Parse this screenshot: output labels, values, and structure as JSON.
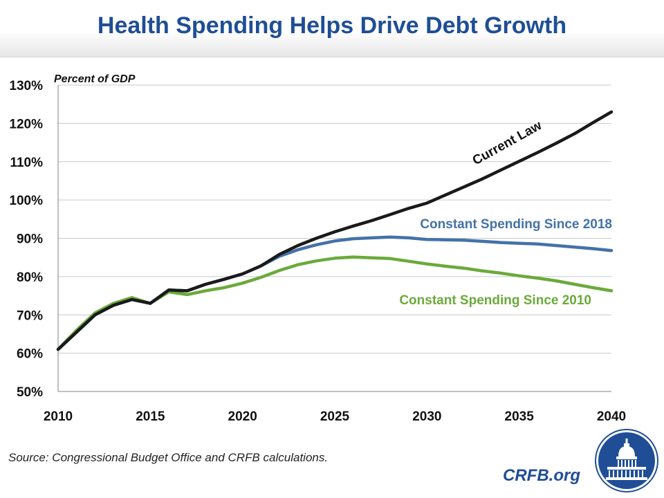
{
  "header": {
    "title": "Health Spending Helps Drive Debt Growth"
  },
  "footer": {
    "source": "Source: Congressional Budget Office and CRFB calculations.",
    "brand": "CRFB.org"
  },
  "logo_icon": "capitol-seal-icon",
  "chart_data": {
    "type": "line",
    "ylabel": "Percent of GDP",
    "xlim": [
      2010,
      2040
    ],
    "ylim": [
      50,
      130
    ],
    "xticks": [
      "2010",
      "2015",
      "2020",
      "2025",
      "2030",
      "2035",
      "2040"
    ],
    "yticks": [
      "50%",
      "60%",
      "70%",
      "80%",
      "90%",
      "100%",
      "110%",
      "120%",
      "130%"
    ],
    "grid": true,
    "legend": "inline labels",
    "x": [
      2010,
      2011,
      2012,
      2013,
      2014,
      2015,
      2016,
      2017,
      2018,
      2019,
      2020,
      2021,
      2022,
      2023,
      2024,
      2025,
      2026,
      2027,
      2028,
      2029,
      2030,
      2031,
      2032,
      2033,
      2034,
      2035,
      2036,
      2037,
      2038,
      2039,
      2040
    ],
    "series": [
      {
        "name": "Current Law",
        "color": "#1a1a1a",
        "values": [
          61,
          65.5,
          70,
          72.5,
          74,
          73,
          76.5,
          76.3,
          78,
          79.3,
          80.7,
          82.8,
          85.8,
          88.1,
          90,
          91.7,
          93.2,
          94.6,
          96.2,
          97.8,
          99.2,
          101.3,
          103.4,
          105.5,
          107.8,
          110.1,
          112.4,
          114.8,
          117.3,
          120.2,
          123
        ]
      },
      {
        "name": "Constant Spending Since 2018",
        "color": "#4472a8",
        "values": [
          61,
          65.5,
          70,
          72.5,
          74,
          73,
          76.5,
          76.3,
          78,
          79.3,
          80.7,
          82.8,
          85.3,
          87,
          88.3,
          89.3,
          89.9,
          90.1,
          90.3,
          90.1,
          89.7,
          89.6,
          89.5,
          89.2,
          88.9,
          88.7,
          88.5,
          88.1,
          87.7,
          87.3,
          86.8
        ]
      },
      {
        "name": "Constant Spending Since 2010",
        "color": "#6aaa3a",
        "values": [
          61,
          66,
          70.5,
          73,
          74.5,
          73,
          76,
          75.3,
          76.3,
          77.1,
          78.3,
          79.8,
          81.6,
          83.1,
          84.1,
          84.8,
          85.1,
          84.9,
          84.7,
          84,
          83.3,
          82.7,
          82.2,
          81.5,
          80.9,
          80.2,
          79.6,
          78.9,
          78,
          77.1,
          76.3
        ]
      }
    ]
  }
}
